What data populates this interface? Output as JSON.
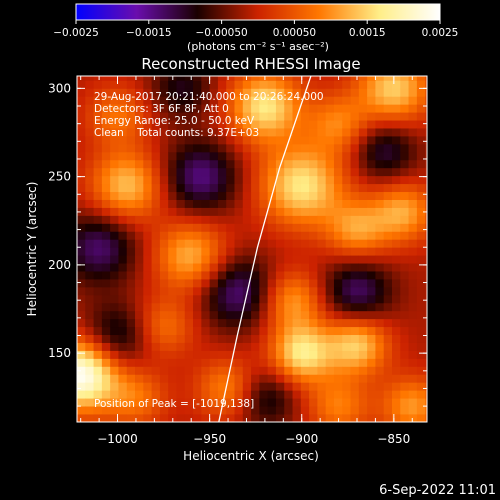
{
  "chart_data": {
    "type": "heatmap",
    "title": "Reconstructed RHESSI Image",
    "xlabel": "Heliocentric X (arcsec)",
    "ylabel": "Heliocentric Y (arcsec)",
    "xlim": [
      -1022,
      -832
    ],
    "ylim": [
      111,
      307
    ],
    "x_ticks": [
      -1000,
      -950,
      -900,
      -850
    ],
    "x_tick_labels": [
      "−1000",
      "−950",
      "−900",
      "−850"
    ],
    "y_ticks": [
      150,
      200,
      250,
      300
    ],
    "y_tick_labels": [
      "150",
      "200",
      "250",
      "300"
    ],
    "colorbar": {
      "range": [
        -0.0025,
        0.0025
      ],
      "ticks": [
        -0.0025,
        -0.0015,
        -0.0005,
        0.0005,
        0.0015,
        0.0025
      ],
      "tick_labels": [
        "−0.0025",
        "−0.0015",
        "−0.00050",
        "0.00050",
        "0.0015",
        "0.0025"
      ],
      "unit_label": "(photons cm⁻² s⁻¹ asec⁻²)",
      "colors": [
        "#0000ff",
        "#6a0dad",
        "#1a0000",
        "#cc2200",
        "#ff7700",
        "#ffee88",
        "#ffffff"
      ]
    },
    "annotations": [
      "29-Aug-2017 20:21:40.000 to 20:26:24.000",
      "Detectors: 3F 6F 8F, Att 0",
      "Energy Range: 25.0 - 50.0 keV",
      "Clean    Total counts: 9.37E+03"
    ],
    "peak_label": "Position of Peak = [-1019,138]",
    "peak": [
      -1019,
      138
    ],
    "limb_curve": [
      [
        -945,
        111
      ],
      [
        -935,
        160
      ],
      [
        -924,
        210
      ],
      [
        -912,
        255
      ],
      [
        -895,
        307
      ]
    ],
    "blobs": [
      {
        "x": -1020,
        "y": 138,
        "v": 0.0026,
        "s": 14
      },
      {
        "x": -995,
        "y": 245,
        "v": 0.0015,
        "s": 14
      },
      {
        "x": -1000,
        "y": 285,
        "v": 0.0009,
        "s": 12
      },
      {
        "x": -960,
        "y": 205,
        "v": 0.0014,
        "s": 14
      },
      {
        "x": -975,
        "y": 165,
        "v": 0.0009,
        "s": 12
      },
      {
        "x": -920,
        "y": 290,
        "v": 0.0018,
        "s": 14
      },
      {
        "x": -900,
        "y": 245,
        "v": 0.0018,
        "s": 16
      },
      {
        "x": -870,
        "y": 220,
        "v": 0.0012,
        "s": 12
      },
      {
        "x": -845,
        "y": 230,
        "v": 0.0013,
        "s": 12
      },
      {
        "x": -850,
        "y": 300,
        "v": 0.0016,
        "s": 14
      },
      {
        "x": -880,
        "y": 280,
        "v": 0.001,
        "s": 12
      },
      {
        "x": -900,
        "y": 150,
        "v": 0.0018,
        "s": 12
      },
      {
        "x": -870,
        "y": 155,
        "v": 0.0016,
        "s": 12
      },
      {
        "x": -905,
        "y": 180,
        "v": 0.0012,
        "s": 12
      },
      {
        "x": -940,
        "y": 130,
        "v": 0.0011,
        "s": 12
      },
      {
        "x": -990,
        "y": 125,
        "v": 0.0009,
        "s": 12
      },
      {
        "x": -840,
        "y": 120,
        "v": 0.0012,
        "s": 12
      },
      {
        "x": -880,
        "y": 120,
        "v": 0.001,
        "s": 12
      },
      {
        "x": -1010,
        "y": 210,
        "v": -0.0012,
        "s": 14
      },
      {
        "x": -1000,
        "y": 160,
        "v": -0.001,
        "s": 13
      },
      {
        "x": -955,
        "y": 250,
        "v": -0.0013,
        "s": 14
      },
      {
        "x": -935,
        "y": 185,
        "v": -0.0013,
        "s": 14
      },
      {
        "x": -920,
        "y": 125,
        "v": -0.0009,
        "s": 12
      },
      {
        "x": -870,
        "y": 185,
        "v": -0.0012,
        "s": 13
      },
      {
        "x": -855,
        "y": 265,
        "v": -0.001,
        "s": 12
      },
      {
        "x": -965,
        "y": 300,
        "v": -0.0008,
        "s": 12
      }
    ]
  },
  "footer": {
    "date": "6-Sep-2022 11:01"
  }
}
